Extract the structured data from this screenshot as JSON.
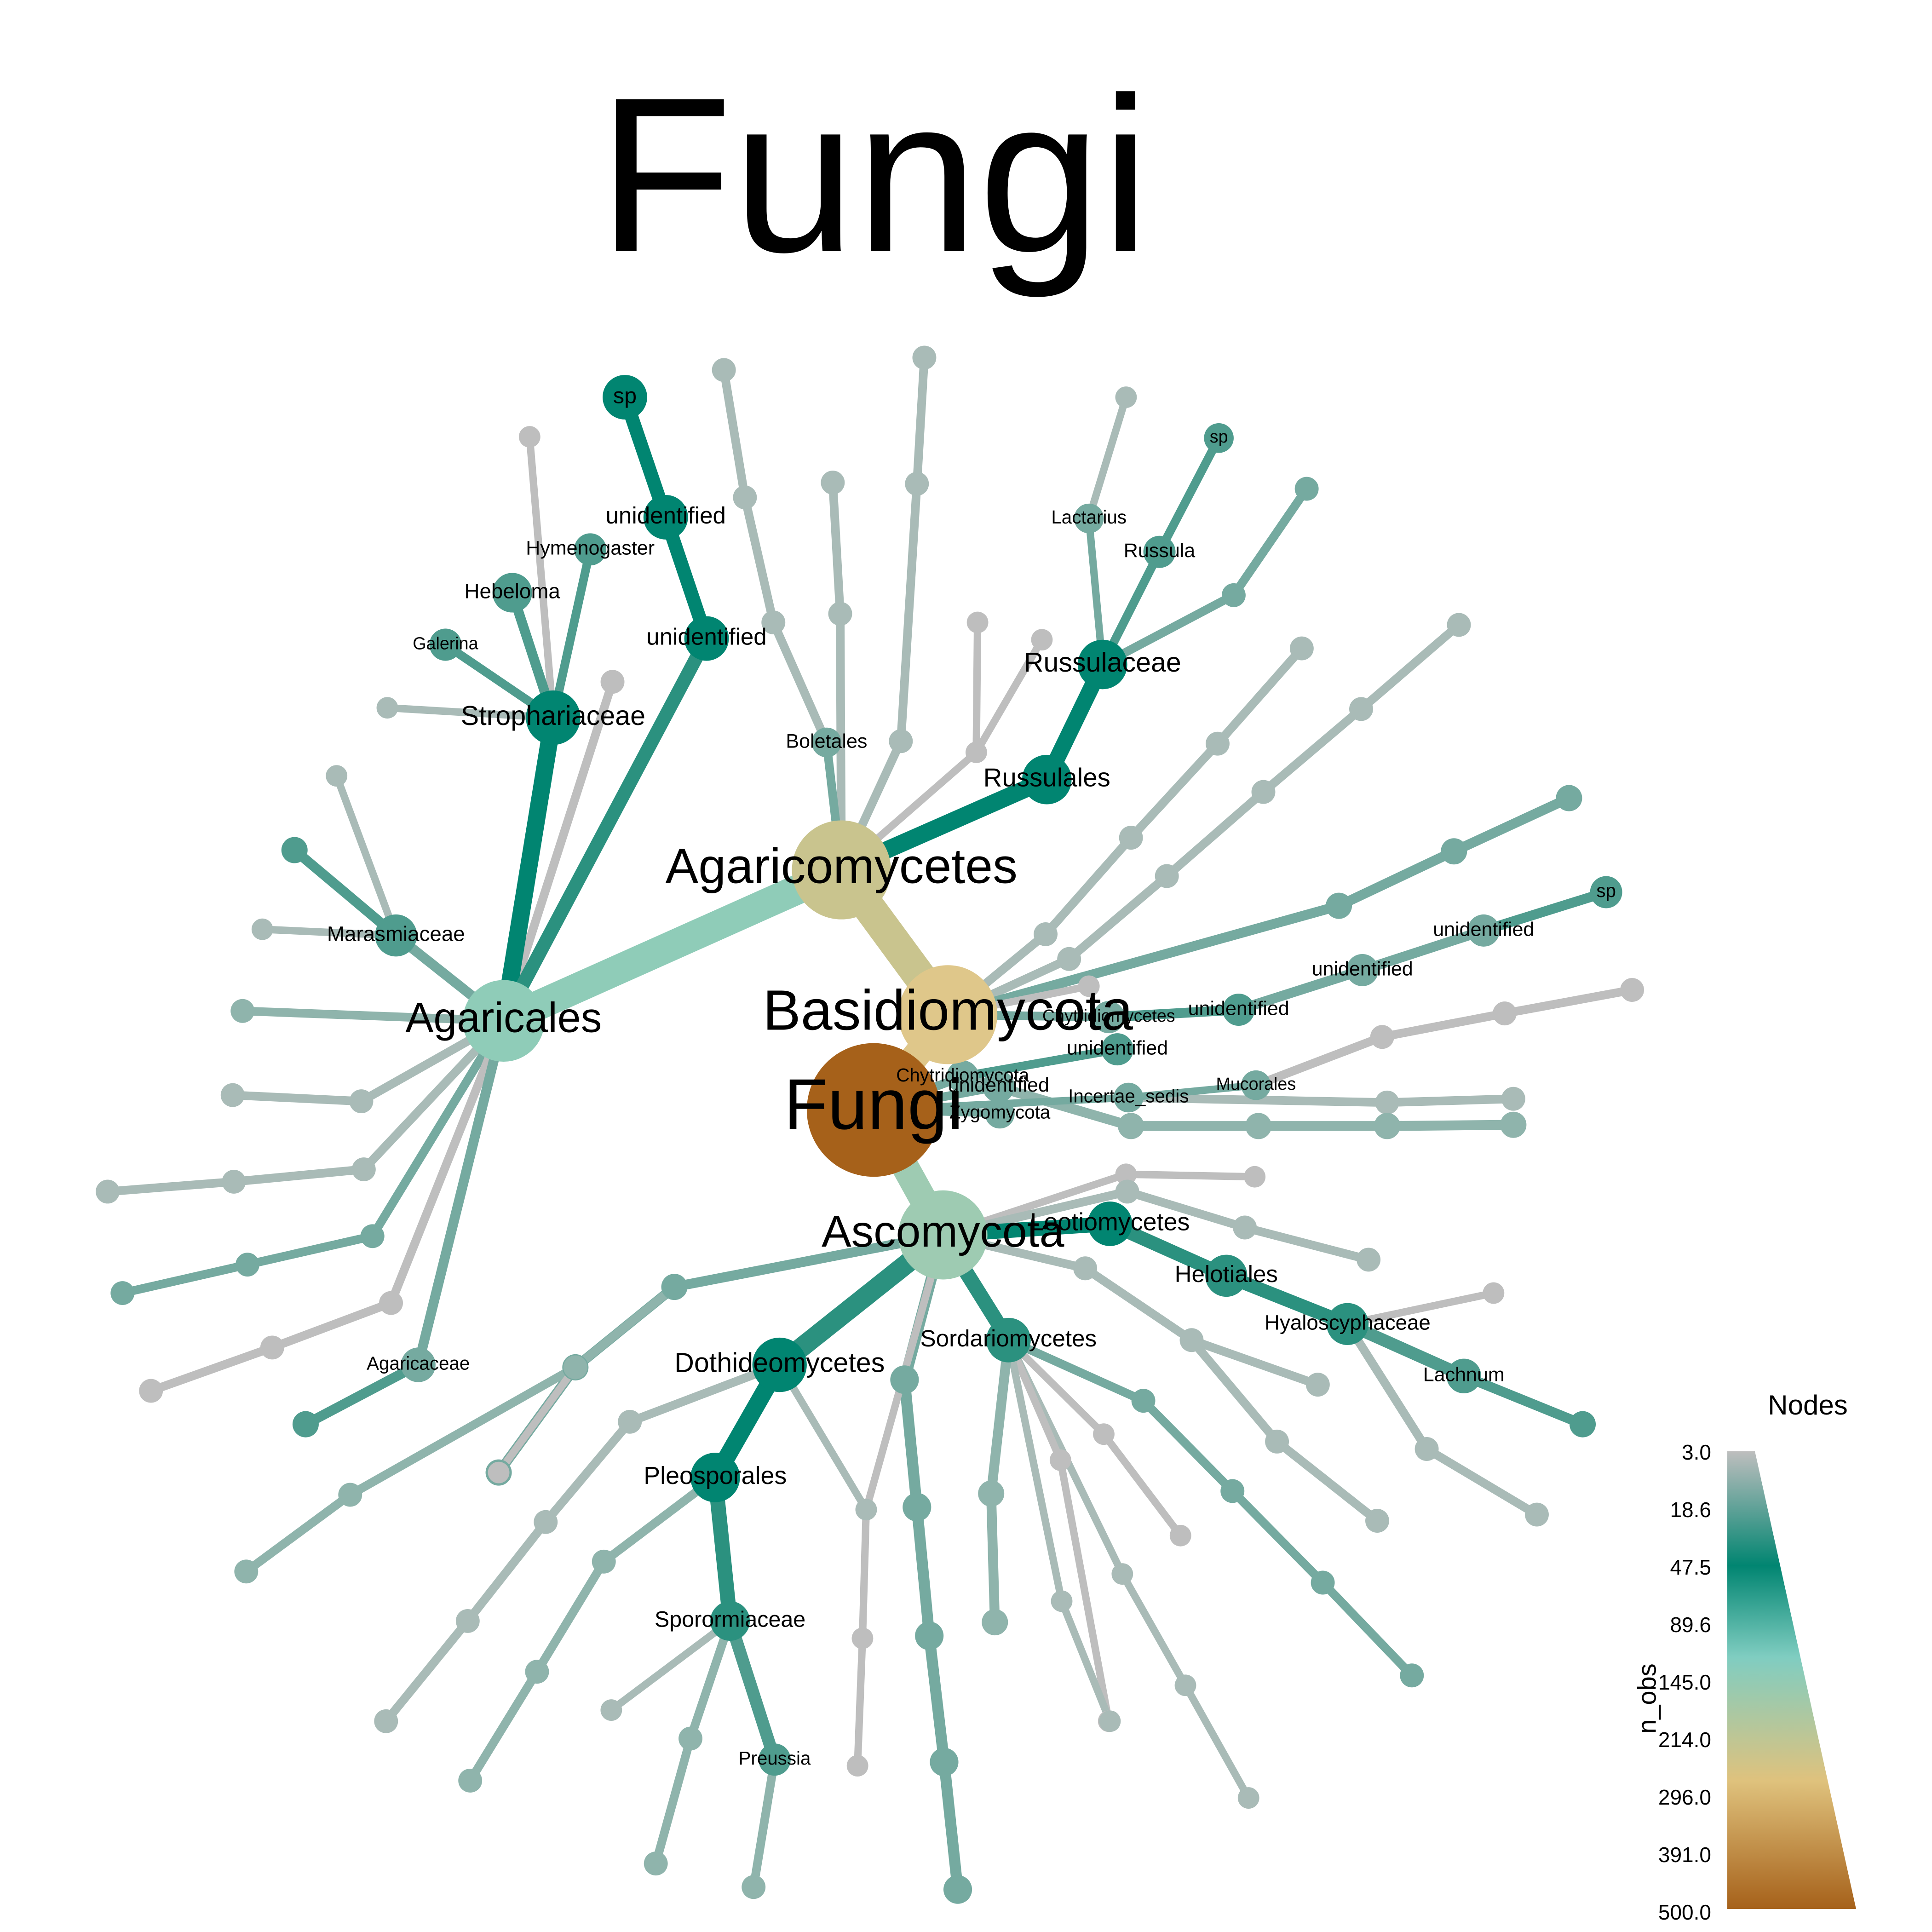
{
  "title": "Fungi",
  "legend": {
    "title": "Nodes",
    "axis_label": "n_obs",
    "ticks": [
      "3.0",
      "18.6",
      "47.5",
      "89.6",
      "145.0",
      "214.0",
      "296.0",
      "391.0",
      "500.0"
    ],
    "colors": {
      "low": "#bebebe",
      "mid_low": "#018571",
      "mid": "#80cdc1",
      "mid_high": "#dfc27d",
      "high": "#a6611a"
    }
  },
  "tree": {
    "root": "Fungi",
    "labels": {
      "basidiomycota": "Basidiomycota",
      "ascomycota": "Ascomycota",
      "agaricomycetes": "Agaricomycetes",
      "agaricales": "Agaricales",
      "strophariaceae": "Strophariaceae",
      "hymenogaster": "Hymenogaster",
      "hebeloma": "Hebeloma",
      "galerina": "Galerina",
      "marasmiaceae": "Marasmiaceae",
      "agaricaceae": "Agaricaceae",
      "unidentified_agaricales_1": "unidentified",
      "unidentified_agaricales_2": "unidentified",
      "sp_agaricales": "sp",
      "boletales": "Boletales",
      "russulales": "Russulales",
      "russulaceae": "Russulaceae",
      "lactarius": "Lactarius",
      "russula": "Russula",
      "sp_russula": "sp",
      "chytridiomycetes": "Chytridiomycetes",
      "chytridiomycota": "Chytridiomycota",
      "unidentified_c1": "unidentified",
      "unidentified_c2": "unidentified",
      "unidentified_c3": "unidentified",
      "unidentified_c4": "unidentified",
      "unidentified_c5": "unidentified",
      "sp_c": "sp",
      "incertae_sedis": "Incertae_sedis",
      "mucorales": "Mucorales",
      "zygomycota": "Zygomycota",
      "leotiomycetes": "Leotiomycetes",
      "helotiales": "Helotiales",
      "hyaloscyphaceae": "Hyaloscyphaceae",
      "lachnum": "Lachnum",
      "sordariomycetes": "Sordariomycetes",
      "dothideomycetes": "Dothideomycetes",
      "pleosporales": "Pleosporales",
      "sporormiaceae": "Sporormiaceae",
      "preussia": "Preussia"
    }
  }
}
